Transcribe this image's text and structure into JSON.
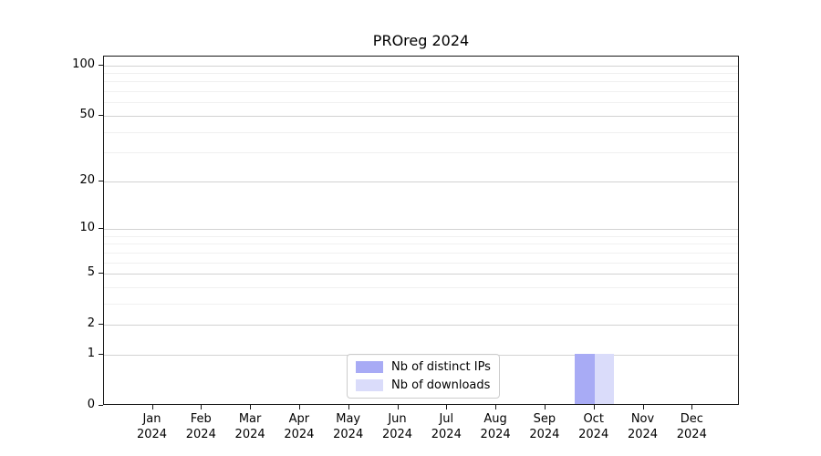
{
  "title": "PROreg 2024",
  "chart_data": {
    "type": "bar",
    "title": "PROreg 2024",
    "categories": [
      "Jan",
      "Feb",
      "Mar",
      "Apr",
      "May",
      "Jun",
      "Jul",
      "Aug",
      "Sep",
      "Oct",
      "Nov",
      "Dec"
    ],
    "category_year": "2024",
    "series": [
      {
        "name": "Nb of distinct IPs",
        "color": "#a8abf5",
        "values": [
          0,
          0,
          0,
          0,
          0,
          0,
          0,
          0,
          0,
          1,
          0,
          0
        ]
      },
      {
        "name": "Nb of downloads",
        "color": "#dadcfa",
        "values": [
          0,
          0,
          0,
          0,
          0,
          0,
          0,
          0,
          0,
          1,
          0,
          0
        ]
      }
    ],
    "y_scale": "log1p",
    "y_major_ticks": [
      0,
      1,
      2,
      5,
      10,
      20,
      50,
      100
    ],
    "y_minor_ticks": [
      3,
      4,
      6,
      7,
      8,
      9,
      30,
      40,
      60,
      70,
      80,
      90
    ],
    "ylim": [
      0,
      112
    ],
    "grid": true,
    "legend_position": "lower center",
    "colors": {
      "grid_major": "#d2d2d2",
      "grid_minor": "#f0f0f0",
      "spine": "#161616",
      "legend_border": "#cccccc"
    }
  }
}
